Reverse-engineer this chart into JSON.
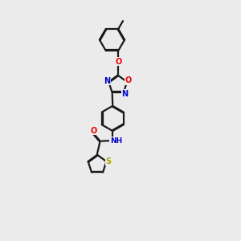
{
  "background_color": "#ebebeb",
  "bond_color": "#1a1a1a",
  "atom_colors": {
    "N": "#0000cc",
    "O": "#ee0000",
    "S": "#aaaa00",
    "C": "#1a1a1a"
  },
  "lw": 1.6,
  "fs": 7.0,
  "r_hex": 0.52,
  "r_pent": 0.4,
  "dbl_off": 0.028
}
